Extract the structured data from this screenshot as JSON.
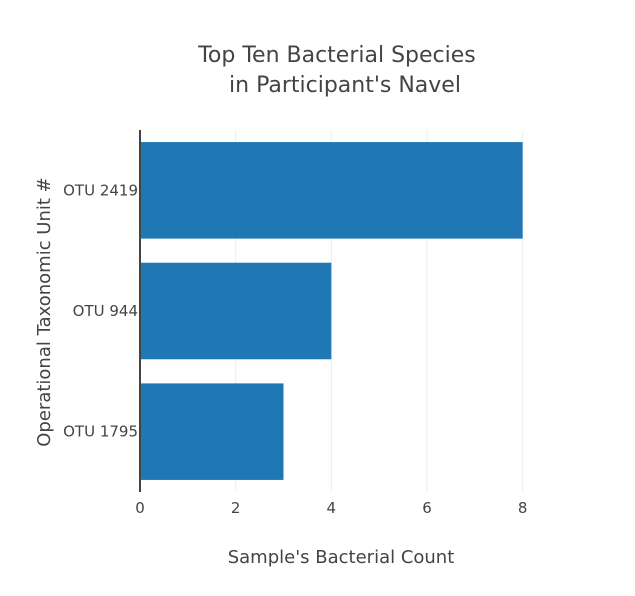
{
  "chart_data": {
    "type": "bar",
    "orientation": "horizontal",
    "title_lines": [
      "Top Ten Bacterial Species",
      "in Participant's Navel"
    ],
    "xlabel": "Sample's Bacterial Count",
    "ylabel": "Operational Taxonomic Unit #",
    "categories": [
      "OTU 2419",
      "OTU 944",
      "OTU 1795"
    ],
    "values": [
      8,
      4,
      3
    ],
    "xlim": [
      0,
      8.3
    ],
    "xticks": [
      0,
      2,
      4,
      6,
      8
    ],
    "grid": true,
    "legend": "none",
    "colors": {
      "bar": "#1f77b4",
      "grid": "#eeeeee",
      "axis": "#444444",
      "text": "#444444"
    }
  }
}
